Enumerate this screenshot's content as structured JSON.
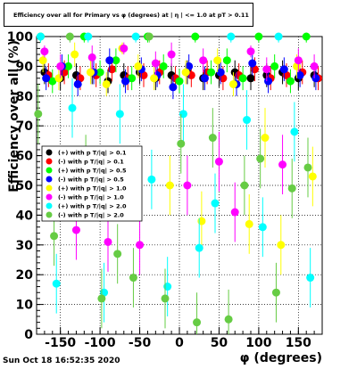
{
  "chart_data": {
    "type": "scatter",
    "title": "Efficiency over all for Primary vs φ (degrees) at | η | <= 1.0 at pT > 0.11",
    "xlabel": "φ (degrees)",
    "ylabel": "Efficiency over all (%)",
    "xlim": [
      -180,
      180
    ],
    "ylim": [
      0,
      100
    ],
    "x_ticks": [
      -150,
      -100,
      -50,
      0,
      50,
      100,
      150
    ],
    "y_ticks": [
      0,
      10,
      20,
      30,
      40,
      50,
      60,
      70,
      80,
      90,
      100
    ],
    "grid": true,
    "legend_position": "left-middle",
    "series": [
      {
        "name": "(+) with p T/|q| > 0.1",
        "color": "#000000",
        "x": [
          -170,
          -150,
          -130,
          -110,
          -90,
          -70,
          -50,
          -30,
          -10,
          10,
          30,
          50,
          70,
          90,
          110,
          130,
          150,
          170
        ],
        "y": [
          88,
          86,
          87,
          88,
          85,
          87,
          88,
          86,
          87,
          88,
          86,
          87,
          88,
          86,
          87,
          88,
          86,
          87
        ]
      },
      {
        "name": "(-) with p T/|q| > 0.1",
        "color": "#ff0000",
        "x": [
          -165,
          -145,
          -125,
          -105,
          -85,
          -65,
          -45,
          -25,
          -5,
          15,
          35,
          55,
          75,
          95,
          115,
          135,
          155,
          175
        ],
        "y": [
          87,
          88,
          86,
          87,
          89,
          86,
          87,
          88,
          86,
          87,
          88,
          86,
          87,
          89,
          86,
          87,
          88,
          86
        ]
      },
      {
        "name": "(+) with p T/|q| > 0.5",
        "color": "#00ff00",
        "x": [
          -175,
          -160,
          -140,
          -120,
          -100,
          -80,
          -60,
          -40,
          -20,
          0,
          20,
          40,
          60,
          80,
          100,
          120,
          140,
          160
        ],
        "y": [
          100,
          85,
          90,
          100,
          88,
          92,
          86,
          100,
          90,
          85,
          100,
          88,
          92,
          86,
          100,
          90,
          85,
          100
        ]
      },
      {
        "name": "(-) with p T/|q| > 0.5",
        "color": "#0000ff",
        "x": [
          -168,
          -148,
          -128,
          -108,
          -88,
          -68,
          -48,
          -28,
          -8,
          12,
          32,
          52,
          72,
          92,
          112,
          132,
          152,
          172
        ],
        "y": [
          86,
          90,
          84,
          88,
          92,
          85,
          89,
          87,
          83,
          90,
          86,
          88,
          84,
          91,
          85,
          89,
          87,
          86
        ]
      },
      {
        "name": "(+) with p T/|q| > 1.0",
        "color": "#ffff00",
        "x": [
          -172,
          -152,
          -132,
          -112,
          -92,
          -72,
          -52,
          -32,
          -12,
          8,
          28,
          48,
          68,
          88,
          108,
          128,
          148,
          168
        ],
        "y": [
          92,
          86,
          94,
          88,
          84,
          96,
          90,
          86,
          50,
          88,
          38,
          92,
          84,
          37,
          66,
          30,
          90,
          53
        ]
      },
      {
        "name": "(-) with p T/|q| > 1.0",
        "color": "#ff00ff",
        "x": [
          -170,
          -150,
          -130,
          -110,
          -90,
          -70,
          -50,
          -30,
          -10,
          10,
          30,
          50,
          70,
          90,
          110,
          130,
          150,
          170
        ],
        "y": [
          95,
          90,
          35,
          93,
          31,
          96,
          30,
          91,
          94,
          50,
          92,
          58,
          41,
          95,
          89,
          57,
          92,
          90
        ]
      },
      {
        "name": "(+) with p T/|q| > 2.0",
        "color": "#00ffff",
        "x": [
          -175,
          -155,
          -135,
          -115,
          -95,
          -75,
          -55,
          -35,
          -15,
          5,
          25,
          45,
          65,
          85,
          105,
          125,
          145,
          165
        ],
        "y": [
          100,
          17,
          76,
          100,
          14,
          74,
          100,
          52,
          16,
          74,
          29,
          44,
          100,
          72,
          36,
          100,
          68,
          19
        ]
      },
      {
        "name": "(-) with p T/|q| > 2.0",
        "color": "#66cc44",
        "x": [
          -178,
          -158,
          -138,
          -118,
          -98,
          -78,
          -58,
          -38,
          -18,
          2,
          22,
          42,
          62,
          82,
          102,
          122,
          142,
          162
        ],
        "y": [
          74,
          33,
          100,
          57,
          12,
          27,
          19,
          100,
          12,
          64,
          4,
          66,
          5,
          50,
          59,
          14,
          49,
          56
        ]
      }
    ]
  },
  "footer": {
    "timestamp": "Sun Oct 18 16:52:35 2020"
  }
}
